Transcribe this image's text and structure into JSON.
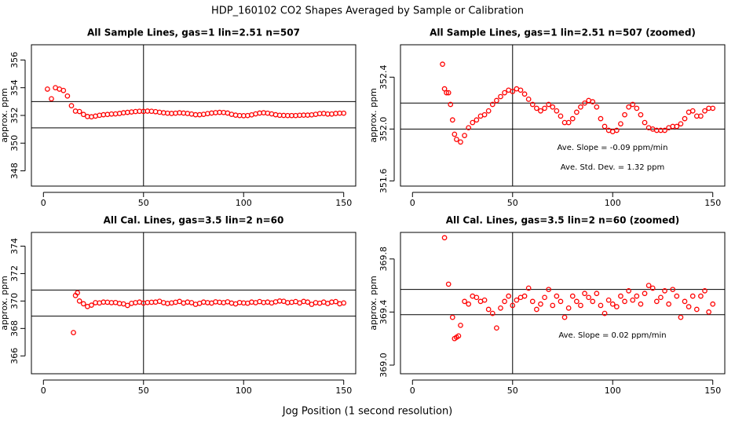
{
  "title": "HDP_160102  CO2 Shapes Averaged by Sample or Calibration",
  "x_label": "Jog Position (1 second resolution)",
  "chart_data": [
    {
      "type": "scatter",
      "title": "All Sample Lines, gas=1 lin=2.51 n=507",
      "y_label": "approx. ppm",
      "color": "#ff0000",
      "x": [
        2,
        4,
        6,
        8,
        10,
        12,
        14,
        16,
        18,
        20,
        22,
        24,
        26,
        28,
        30,
        32,
        34,
        36,
        38,
        40,
        42,
        44,
        46,
        48,
        50,
        52,
        54,
        56,
        58,
        60,
        62,
        64,
        66,
        68,
        70,
        72,
        74,
        76,
        78,
        80,
        82,
        84,
        86,
        88,
        90,
        92,
        94,
        96,
        98,
        100,
        102,
        104,
        106,
        108,
        110,
        112,
        114,
        116,
        118,
        120,
        122,
        124,
        126,
        128,
        130,
        132,
        134,
        136,
        138,
        140,
        142,
        144,
        146,
        148,
        150
      ],
      "values": [
        353.9,
        353.2,
        354.0,
        353.9,
        353.8,
        353.4,
        352.7,
        352.31,
        352.28,
        352.07,
        351.92,
        351.9,
        351.95,
        352.01,
        352.05,
        352.07,
        352.1,
        352.11,
        352.14,
        352.19,
        352.22,
        352.25,
        352.28,
        352.3,
        352.29,
        352.31,
        352.3,
        352.27,
        352.23,
        352.19,
        352.16,
        352.14,
        352.16,
        352.19,
        352.17,
        352.14,
        352.1,
        352.05,
        352.05,
        352.08,
        352.13,
        352.17,
        352.2,
        352.22,
        352.21,
        352.17,
        352.08,
        352.02,
        351.99,
        351.98,
        351.99,
        352.04,
        352.11,
        352.17,
        352.19,
        352.16,
        352.11,
        352.05,
        352.01,
        352.0,
        351.99,
        351.99,
        351.99,
        352.01,
        352.02,
        352.02,
        352.04,
        352.08,
        352.13,
        352.14,
        352.1,
        352.1,
        352.14,
        352.16,
        352.16
      ],
      "xlim": [
        -6,
        156
      ],
      "xticks": [
        0,
        50,
        100,
        150
      ],
      "ylim": [
        346.9,
        357.1
      ],
      "yticks": [
        348,
        350,
        352,
        354,
        356
      ],
      "hlines": [
        353.0,
        351.1
      ],
      "vlines": [
        50
      ]
    },
    {
      "type": "scatter",
      "title": "All Sample Lines, gas=1 lin=2.51 n=507 (zoomed)",
      "y_label": "approx. ppm",
      "color": "#ff0000",
      "x": [
        15,
        16,
        17,
        18,
        19,
        20,
        21,
        22,
        24,
        26,
        28,
        30,
        32,
        34,
        36,
        38,
        40,
        42,
        44,
        46,
        48,
        50,
        52,
        54,
        56,
        58,
        60,
        62,
        64,
        66,
        68,
        70,
        72,
        74,
        76,
        78,
        80,
        82,
        84,
        86,
        88,
        90,
        92,
        94,
        96,
        98,
        100,
        102,
        104,
        106,
        108,
        110,
        112,
        114,
        116,
        118,
        120,
        122,
        124,
        126,
        128,
        130,
        132,
        134,
        136,
        138,
        140,
        142,
        144,
        146,
        148,
        150
      ],
      "values": [
        352.5,
        352.31,
        352.28,
        352.28,
        352.19,
        352.07,
        351.96,
        351.92,
        351.9,
        351.95,
        352.01,
        352.05,
        352.07,
        352.1,
        352.11,
        352.14,
        352.19,
        352.22,
        352.25,
        352.28,
        352.3,
        352.29,
        352.31,
        352.3,
        352.27,
        352.23,
        352.19,
        352.16,
        352.14,
        352.16,
        352.19,
        352.17,
        352.14,
        352.1,
        352.05,
        352.05,
        352.08,
        352.13,
        352.17,
        352.2,
        352.22,
        352.21,
        352.17,
        352.08,
        352.02,
        351.99,
        351.98,
        351.99,
        352.04,
        352.11,
        352.17,
        352.19,
        352.16,
        352.11,
        352.05,
        352.01,
        352.0,
        351.99,
        351.99,
        351.99,
        352.01,
        352.02,
        352.02,
        352.04,
        352.08,
        352.13,
        352.14,
        352.1,
        352.1,
        352.14,
        352.16,
        352.16
      ],
      "xlim": [
        -6,
        156
      ],
      "xticks": [
        0,
        50,
        100,
        150
      ],
      "ylim": [
        351.56,
        352.65
      ],
      "yticks": [
        351.6,
        {
          "value": 352,
          "label": "352.0"
        },
        352.4
      ],
      "hlines": [
        352.2,
        352.0
      ],
      "vlines": [
        50
      ],
      "annotations": [
        "Ave. Slope =  -0.09  ppm/min",
        "Ave. Std. Dev. =  1.32  ppm"
      ]
    },
    {
      "type": "scatter",
      "title": "All Cal. Lines, gas=3.5 lin=2 n=60",
      "y_label": "approx. ppm",
      "color": "#ff0000",
      "x": [
        15,
        16,
        17,
        18,
        20,
        22,
        24,
        26,
        28,
        30,
        32,
        34,
        36,
        38,
        40,
        42,
        44,
        46,
        48,
        50,
        52,
        54,
        56,
        58,
        60,
        62,
        64,
        66,
        68,
        70,
        72,
        74,
        76,
        78,
        80,
        82,
        84,
        86,
        88,
        90,
        92,
        94,
        96,
        98,
        100,
        102,
        104,
        106,
        108,
        110,
        112,
        114,
        116,
        118,
        120,
        122,
        124,
        126,
        128,
        130,
        132,
        134,
        136,
        138,
        140,
        142,
        144,
        146,
        148,
        150
      ],
      "values": [
        367.7,
        370.4,
        370.6,
        370.0,
        369.8,
        369.6,
        369.7,
        369.88,
        369.86,
        369.92,
        369.91,
        369.88,
        369.89,
        369.82,
        369.79,
        369.68,
        369.83,
        369.88,
        369.92,
        369.85,
        369.89,
        369.91,
        369.92,
        369.98,
        369.88,
        369.82,
        369.86,
        369.91,
        369.97,
        369.85,
        369.92,
        369.88,
        369.76,
        369.83,
        369.92,
        369.88,
        369.85,
        369.94,
        369.91,
        369.88,
        369.94,
        369.85,
        369.79,
        369.89,
        369.86,
        369.84,
        369.92,
        369.88,
        369.96,
        369.89,
        369.92,
        369.86,
        369.94,
        370.0,
        369.98,
        369.88,
        369.91,
        369.96,
        369.86,
        369.97,
        369.92,
        369.76,
        369.88,
        369.84,
        369.92,
        369.82,
        369.92,
        369.96,
        369.8,
        369.86
      ],
      "xlim": [
        -6,
        156
      ],
      "xticks": [
        0,
        50,
        100,
        150
      ],
      "ylim": [
        364.7,
        375.0
      ],
      "yticks": [
        366,
        368,
        370,
        372,
        374
      ],
      "hlines": [
        370.8,
        368.9
      ],
      "vlines": [
        50
      ]
    },
    {
      "type": "scatter",
      "title": "All Cal. Lines, gas=3.5 lin=2 n=60 (zoomed)",
      "y_label": "approx. ppm",
      "color": "#ff0000",
      "x": [
        16,
        18,
        20,
        21,
        22,
        23,
        24,
        26,
        28,
        30,
        32,
        34,
        36,
        38,
        40,
        42,
        44,
        46,
        48,
        50,
        52,
        54,
        56,
        58,
        60,
        62,
        64,
        66,
        68,
        70,
        72,
        74,
        76,
        78,
        80,
        82,
        84,
        86,
        88,
        90,
        92,
        94,
        96,
        98,
        100,
        102,
        104,
        106,
        108,
        110,
        112,
        114,
        116,
        118,
        120,
        122,
        124,
        126,
        128,
        130,
        132,
        134,
        136,
        138,
        140,
        142,
        144,
        146,
        148,
        150
      ],
      "values": [
        369.96,
        369.61,
        369.36,
        369.2,
        369.21,
        369.22,
        369.3,
        369.48,
        369.46,
        369.52,
        369.51,
        369.48,
        369.49,
        369.42,
        369.39,
        369.28,
        369.43,
        369.48,
        369.52,
        369.45,
        369.49,
        369.51,
        369.52,
        369.58,
        369.48,
        369.42,
        369.46,
        369.51,
        369.57,
        369.45,
        369.52,
        369.48,
        369.36,
        369.43,
        369.52,
        369.48,
        369.45,
        369.54,
        369.51,
        369.48,
        369.54,
        369.45,
        369.39,
        369.49,
        369.46,
        369.44,
        369.52,
        369.48,
        369.56,
        369.49,
        369.52,
        369.46,
        369.54,
        369.6,
        369.58,
        369.48,
        369.51,
        369.56,
        369.46,
        369.57,
        369.52,
        369.36,
        369.48,
        369.44,
        369.52,
        369.42,
        369.52,
        369.56,
        369.4,
        369.46
      ],
      "xlim": [
        -6,
        156
      ],
      "xticks": [
        0,
        50,
        100,
        150
      ],
      "ylim": [
        368.935,
        370.0
      ],
      "yticks": [
        {
          "value": 369,
          "label": "369.0"
        },
        369.4,
        369.8
      ],
      "hlines": [
        369.57,
        369.38
      ],
      "vlines": [
        50
      ],
      "annotations": [
        "Ave. Slope =  0.02  ppm/min"
      ]
    }
  ]
}
